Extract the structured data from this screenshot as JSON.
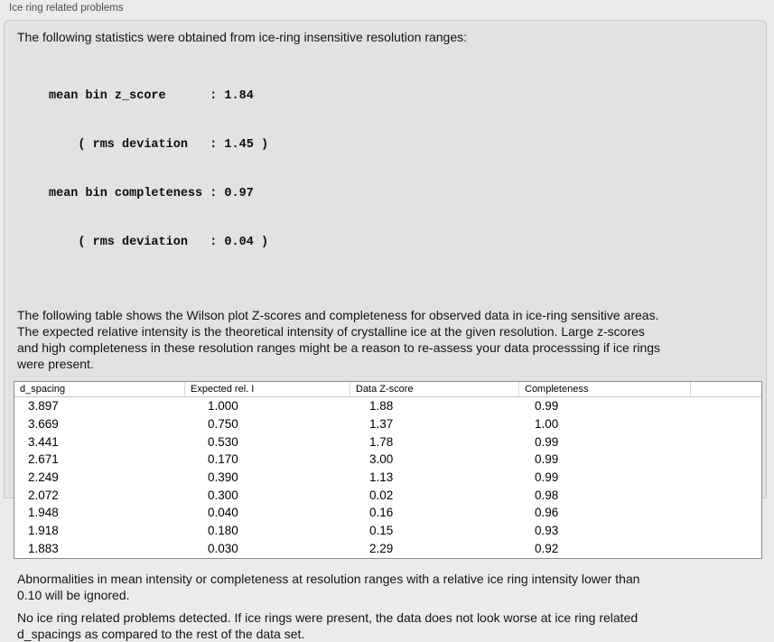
{
  "header": {
    "title": "Ice ring related problems"
  },
  "intro": {
    "text": "The following statistics were obtained from ice-ring insensitive resolution ranges:"
  },
  "stats_block": {
    "lines": [
      "mean bin z_score      : 1.84",
      "    ( rms deviation   : 1.45 )",
      "mean bin completeness : 0.97",
      "    ( rms deviation   : 0.04 )"
    ]
  },
  "description": {
    "text": "The following table shows the Wilson plot Z-scores and completeness for observed data in ice-ring sensitive areas.\nThe expected relative intensity is the theoretical intensity of crystalline ice at the given resolution. Large z-scores\nand high completeness in these resolution ranges might be a reason to re-assess your data processsing if ice rings\nwere present."
  },
  "table": {
    "columns": [
      "d_spacing",
      "Expected rel. I",
      "Data Z-score",
      "Completeness",
      ""
    ],
    "rows": [
      [
        "3.897",
        "1.000",
        "1.88",
        "0.99"
      ],
      [
        "3.669",
        "0.750",
        "1.37",
        "1.00"
      ],
      [
        "3.441",
        "0.530",
        "1.78",
        "0.99"
      ],
      [
        "2.671",
        "0.170",
        "3.00",
        "0.99"
      ],
      [
        "2.249",
        "0.390",
        "1.13",
        "0.99"
      ],
      [
        "2.072",
        "0.300",
        "0.02",
        "0.98"
      ],
      [
        "1.948",
        "0.040",
        "0.16",
        "0.96"
      ],
      [
        "1.918",
        "0.180",
        "0.15",
        "0.93"
      ],
      [
        "1.883",
        "0.030",
        "2.29",
        "0.92"
      ]
    ]
  },
  "notes": {
    "ignore_note": "Abnormalities in mean intensity or completeness at resolution ranges with a relative ice ring intensity lower than\n0.10 will be ignored.",
    "conclusion": "No ice ring related problems detected. If ice rings were present, the data does not look worse at ice ring related\nd_spacings as compared to the rest of the data set."
  }
}
